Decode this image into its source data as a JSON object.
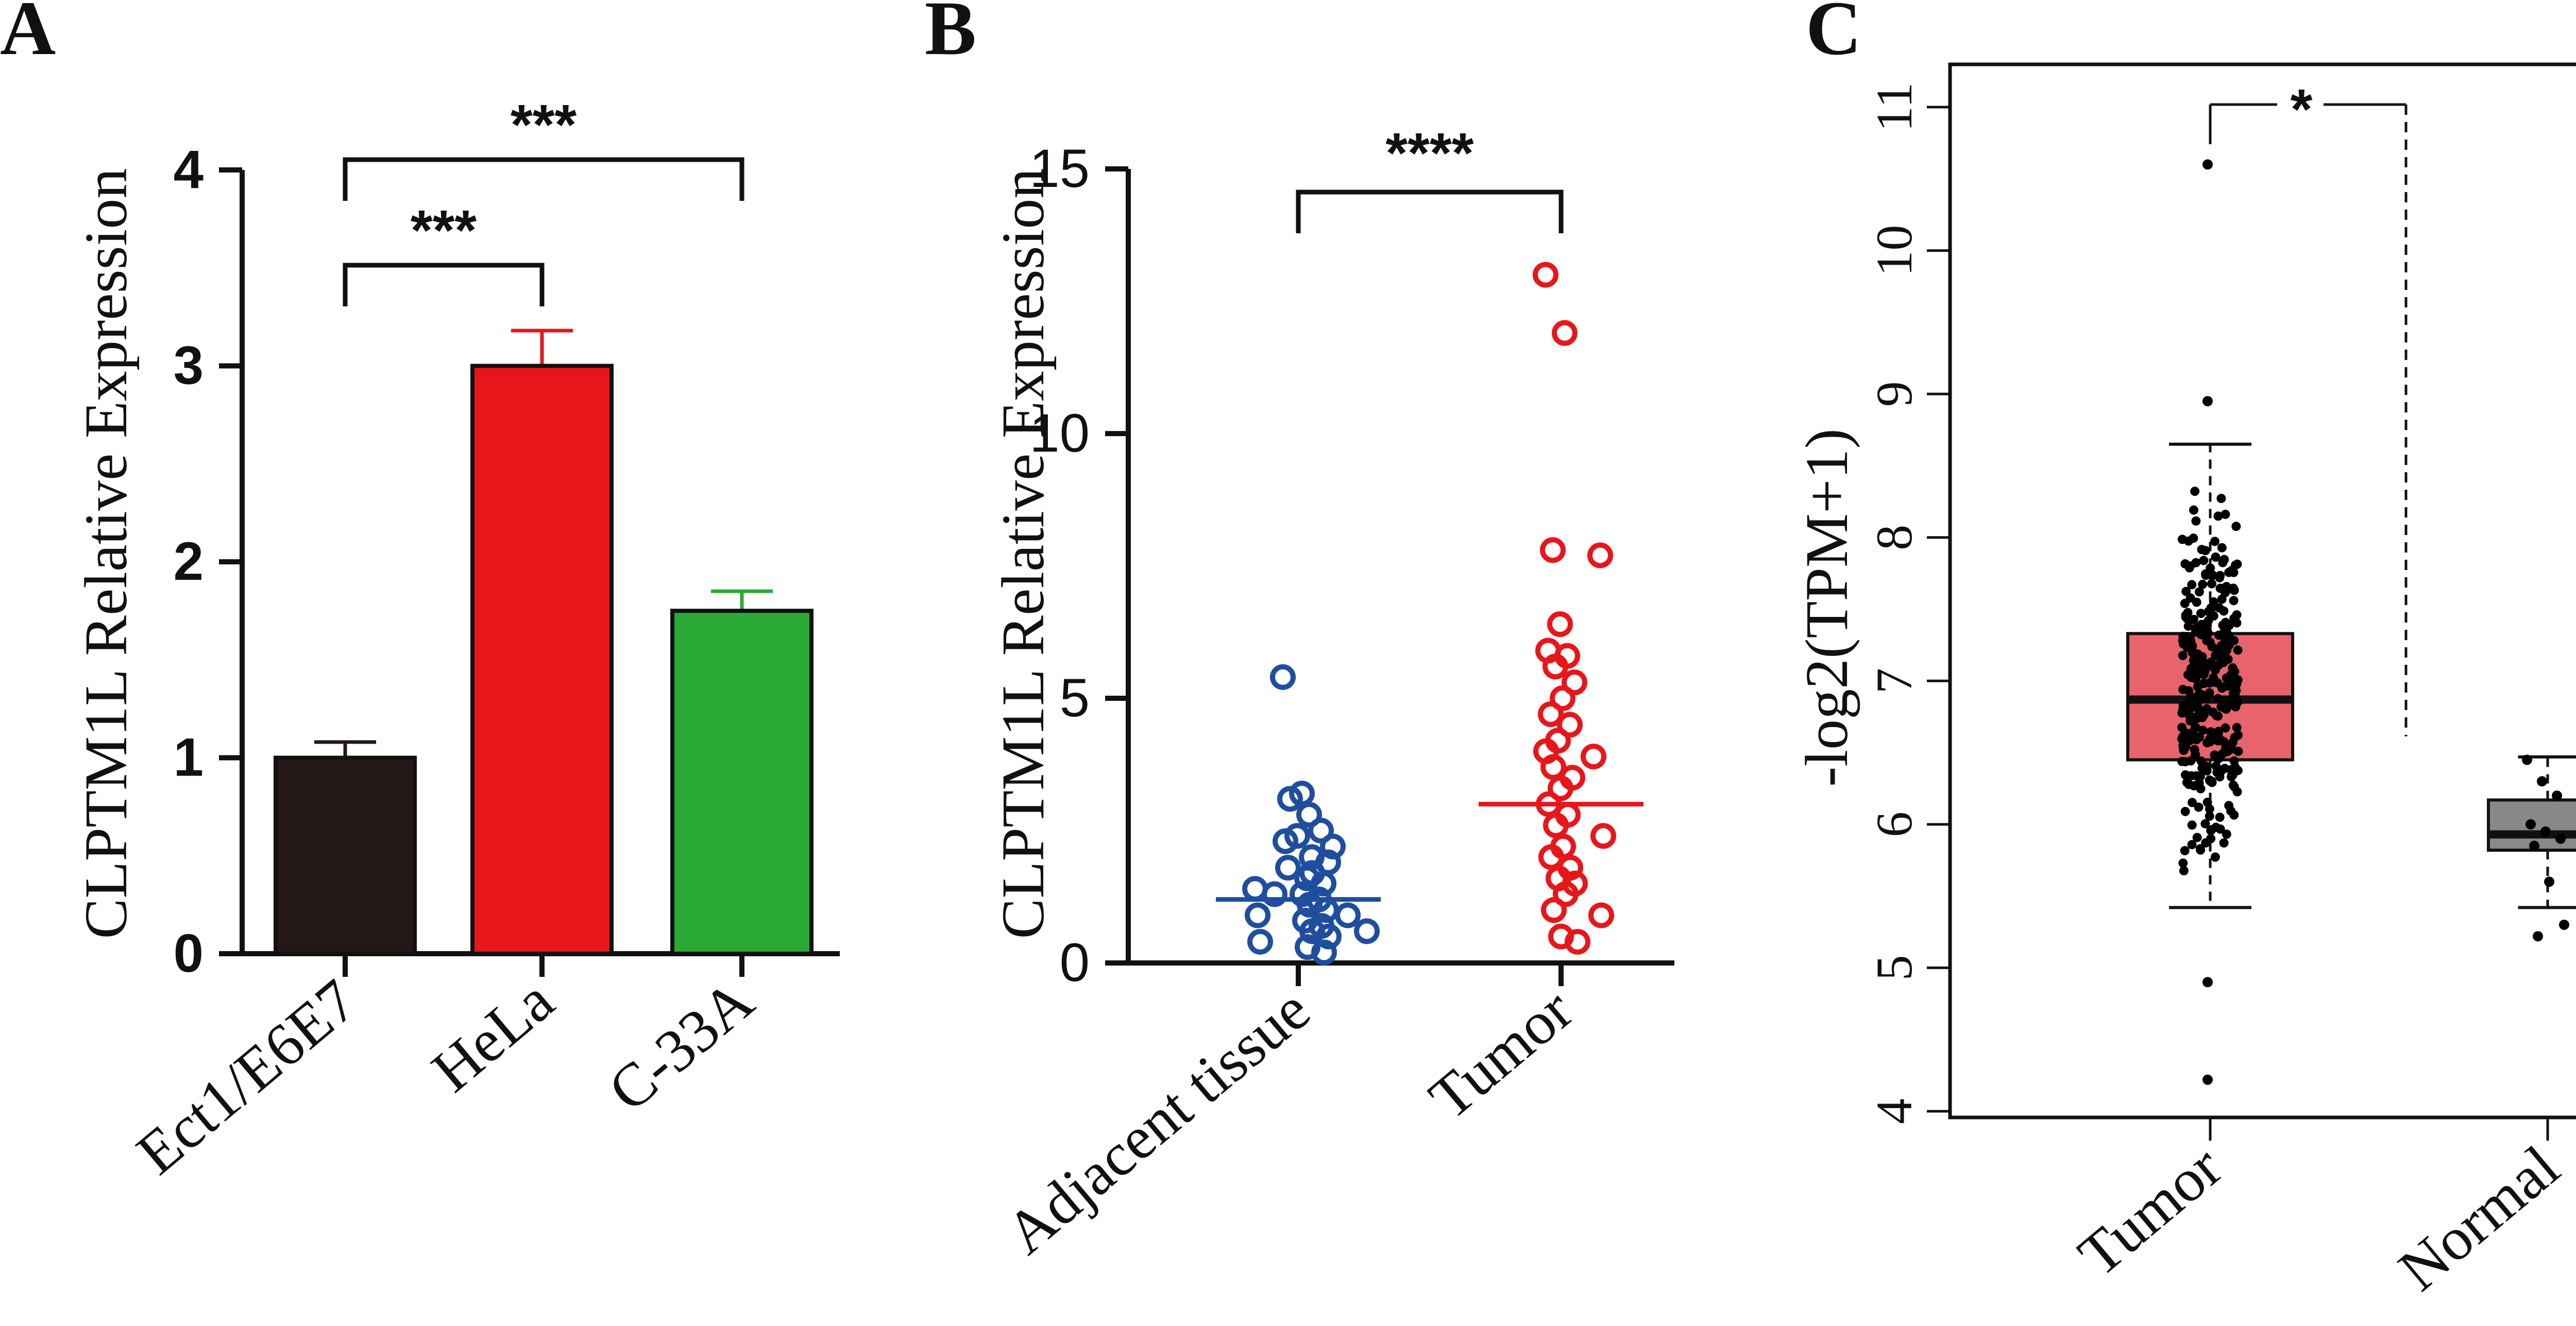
{
  "chart_data": [
    {
      "panel_label": "A",
      "type": "bar",
      "categories": [
        "Ect1/E6E7",
        "HeLa",
        "C-33A"
      ],
      "values": [
        1.0,
        3.0,
        1.75
      ],
      "errors": [
        0.08,
        0.18,
        0.1
      ],
      "colors": [
        "#231815",
        "#e8161b",
        "#2aaa35"
      ],
      "ylabel": "CLPTM1L Relative Expression",
      "ylim": [
        0,
        4
      ],
      "yticks": [
        "0",
        "1",
        "2",
        "3",
        "4"
      ],
      "significance": [
        {
          "from": "Ect1/E6E7",
          "to": "HeLa",
          "label": "***"
        },
        {
          "from": "Ect1/E6E7",
          "to": "C-33A",
          "label": "***"
        }
      ]
    },
    {
      "panel_label": "B",
      "type": "scatter",
      "categories": [
        "Adjacent tissue",
        "Tumor"
      ],
      "ylabel": "CLPTM1L Relative Expression",
      "ylim": [
        0,
        15
      ],
      "yticks": [
        "0",
        "5",
        "10",
        "15"
      ],
      "colors": [
        "#1f4e9e",
        "#e8161b"
      ],
      "means": [
        1.2,
        3.0
      ],
      "series": [
        {
          "name": "Adjacent tissue",
          "values": [
            5.4,
            3.2,
            3.1,
            2.8,
            2.4,
            2.3,
            2.2,
            2.5,
            2.0,
            1.9,
            1.8,
            1.6,
            1.5,
            1.4,
            1.3,
            1.2,
            1.1,
            1.0,
            0.9,
            0.8,
            0.7,
            0.6,
            0.5,
            0.4,
            0.3,
            0.2,
            1.7,
            1.3,
            0.9,
            0.6
          ]
        },
        {
          "name": "Tumor",
          "values": [
            13.0,
            11.9,
            7.8,
            7.7,
            6.4,
            5.9,
            5.8,
            5.6,
            5.3,
            5.0,
            4.7,
            4.5,
            4.2,
            4.0,
            3.9,
            3.7,
            3.5,
            3.3,
            3.0,
            2.8,
            2.6,
            2.4,
            2.2,
            2.0,
            1.8,
            1.6,
            1.5,
            1.3,
            1.0,
            0.9,
            0.5,
            0.4
          ]
        }
      ],
      "significance": [
        {
          "from": "Adjacent tissue",
          "to": "Tumor",
          "label": "****"
        }
      ]
    },
    {
      "panel_label": "C",
      "type": "box",
      "categories": [
        "Tumor",
        "Normal"
      ],
      "ylabel": "-log2(TPM+1)",
      "ylim": [
        4,
        11
      ],
      "yticks": [
        "4",
        "5",
        "6",
        "7",
        "8",
        "9",
        "10",
        "11"
      ],
      "colors": [
        "#e8636b",
        "#888888"
      ],
      "boxes": [
        {
          "name": "Tumor",
          "q1": 6.45,
          "median": 6.87,
          "q3": 7.33,
          "whisker_low": 5.42,
          "whisker_high": 8.65,
          "outliers": [
            10.6,
            8.95,
            4.9,
            4.22
          ]
        },
        {
          "name": "Normal",
          "q1": 5.82,
          "median": 5.93,
          "q3": 6.17,
          "whisker_low": 5.42,
          "whisker_high": 6.47,
          "points": [
            6.45,
            6.3,
            6.2,
            6.0,
            5.95,
            5.9,
            5.85,
            5.6,
            5.3,
            5.22
          ]
        }
      ],
      "significance": [
        {
          "from": "Tumor",
          "to": "Normal",
          "label": "*"
        }
      ]
    }
  ]
}
